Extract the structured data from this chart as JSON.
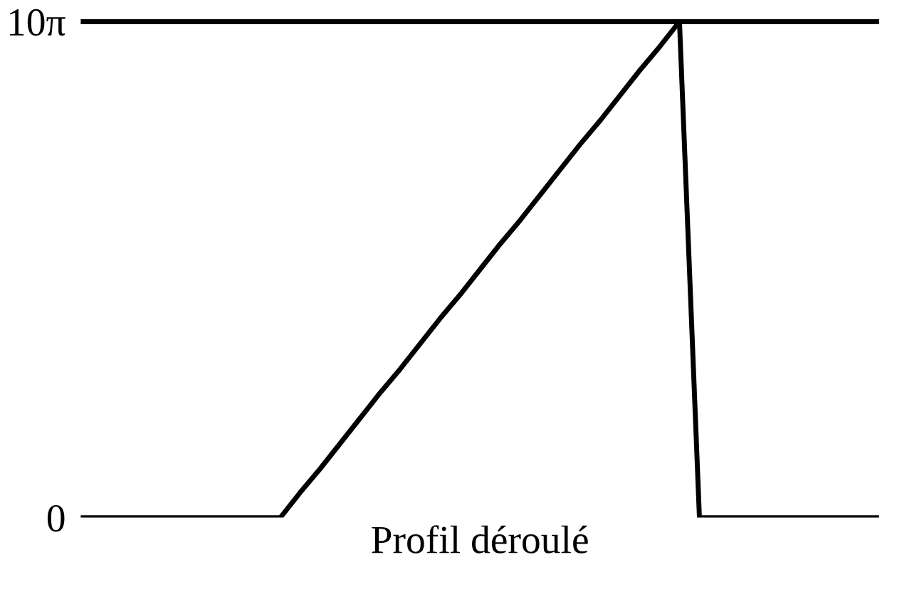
{
  "chart_data": {
    "type": "line",
    "xlabel": "Profil déroulé",
    "categories": [
      null,
      null,
      null,
      null,
      null,
      null,
      null,
      null,
      null,
      null,
      null,
      null,
      null,
      null,
      null,
      null,
      null,
      null,
      null,
      null,
      null,
      null,
      null,
      null,
      null,
      null,
      null,
      null,
      null,
      null,
      null,
      null,
      null,
      null,
      null,
      null,
      null,
      null,
      null,
      null,
      null
    ],
    "series": [
      {
        "color": "#000000",
        "values": [
          0,
          0,
          0,
          0,
          0,
          0,
          0,
          0,
          0,
          0,
          0,
          1.6,
          3.1,
          4.7,
          6.3,
          7.9,
          9.4,
          11.0,
          12.6,
          14.1,
          15.7,
          17.3,
          18.8,
          20.4,
          22.0,
          23.6,
          25.1,
          26.7,
          28.3,
          29.8,
          31.4,
          0,
          0,
          0,
          0,
          0,
          0,
          0,
          0,
          0,
          0
        ]
      }
    ],
    "ylim": [
      0,
      32
    ],
    "yticks": [
      {
        "value": 0,
        "label": "0"
      },
      {
        "value": 31.4,
        "label": "10π"
      }
    ],
    "ref_lines": [
      {
        "axis": "y",
        "value": 31.4,
        "label": null,
        "color": "#000000"
      }
    ],
    "tick_labels": "y",
    "grid": false,
    "legend": false,
    "marker": "none",
    "line_style": "solid"
  }
}
